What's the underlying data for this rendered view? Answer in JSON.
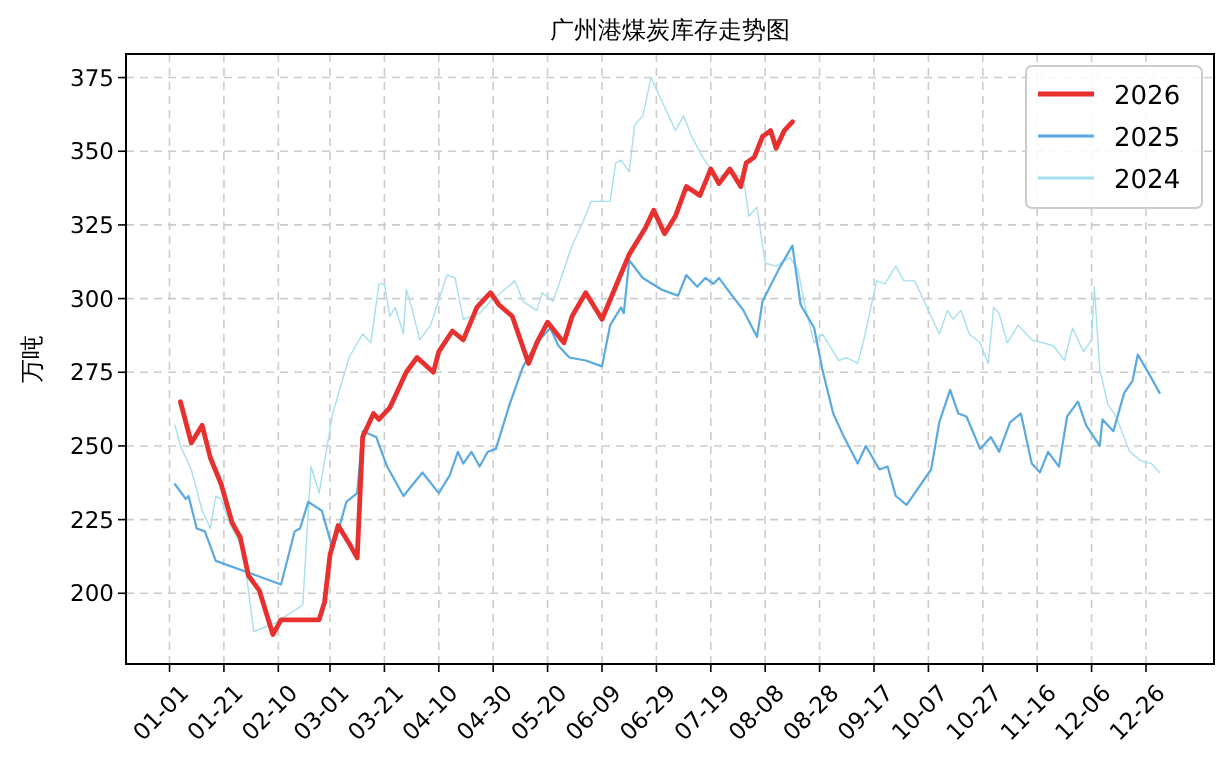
{
  "chart_data": {
    "type": "line",
    "title": "广州港煤炭库存走势图",
    "ylabel": "万吨",
    "xlim": [
      "2000-12-16",
      "2002-01-20"
    ],
    "ylim": [
      176,
      383
    ],
    "xticks": [
      {
        "value": "--01-01",
        "label": "01-01"
      },
      {
        "value": "--01-21",
        "label": "01-21"
      },
      {
        "value": "--02-10",
        "label": "02-10"
      },
      {
        "value": "--03-01",
        "label": "03-01"
      },
      {
        "value": "--03-21",
        "label": "03-21"
      },
      {
        "value": "--04-10",
        "label": "04-10"
      },
      {
        "value": "--04-30",
        "label": "04-30"
      },
      {
        "value": "--05-20",
        "label": "05-20"
      },
      {
        "value": "--06-09",
        "label": "06-09"
      },
      {
        "value": "--06-29",
        "label": "06-29"
      },
      {
        "value": "--07-19",
        "label": "07-19"
      },
      {
        "value": "--08-08",
        "label": "08-08"
      },
      {
        "value": "--08-28",
        "label": "08-28"
      },
      {
        "value": "--09-17",
        "label": "09-17"
      },
      {
        "value": "--10-07",
        "label": "10-07"
      },
      {
        "value": "--10-27",
        "label": "10-27"
      },
      {
        "value": "--11-16",
        "label": "11-16"
      },
      {
        "value": "--12-06",
        "label": "12-06"
      },
      {
        "value": "--12-26",
        "label": "12-26"
      }
    ],
    "yticks": [
      200,
      225,
      250,
      275,
      300,
      325,
      350,
      375
    ],
    "grid": true,
    "legend": "top right",
    "line_style": "solid",
    "marker": "none",
    "series": [
      {
        "name": "2026",
        "color": "#e8302f",
        "x": [
          "--01-05",
          "--01-09",
          "--01-13",
          "--01-16",
          "--01-20",
          "--01-24",
          "--01-27",
          "--01-30",
          "--02-03",
          "--02-05",
          "--02-08",
          "--02-11",
          "--02-25",
          "--02-27",
          "--03-01",
          "--03-04",
          "--03-08",
          "--03-11",
          "--03-13",
          "--03-17",
          "--03-19",
          "--03-23",
          "--03-26",
          "--03-29",
          "--04-02",
          "--04-08",
          "--04-10",
          "--04-15",
          "--04-19",
          "--04-24",
          "--04-29",
          "--05-02",
          "--05-07",
          "--05-13",
          "--05-16",
          "--05-20",
          "--05-26",
          "--05-29",
          "--06-03",
          "--06-09",
          "--06-14",
          "--06-19",
          "--06-25",
          "--06-28",
          "--07-02",
          "--07-06",
          "--07-10",
          "--07-15",
          "--07-19",
          "--07-22",
          "--07-26",
          "--07-30",
          "--08-01",
          "--08-04",
          "--08-07",
          "--08-10",
          "--08-12",
          "--08-15",
          "--08-18"
        ],
        "values": [
          265,
          251,
          257,
          246,
          237,
          224,
          219,
          206,
          201,
          195,
          186,
          191,
          191,
          197,
          213,
          223,
          217,
          212,
          253,
          261,
          259,
          263,
          269,
          275,
          280,
          275,
          282,
          289,
          286,
          297,
          302,
          298,
          294,
          278,
          285,
          292,
          285,
          294,
          302,
          293,
          304,
          315,
          324,
          330,
          322,
          328,
          338,
          335,
          344,
          339,
          344,
          338,
          346,
          348,
          355,
          357,
          351,
          357,
          360
        ]
      },
      {
        "name": "2025",
        "color": "#5aa9e0",
        "x": [
          "--01-03",
          "--01-07",
          "--01-08",
          "--01-11",
          "--01-14",
          "--01-18",
          "--02-11",
          "--02-16",
          "--02-18",
          "--02-21",
          "--02-26",
          "--03-02",
          "--03-04",
          "--03-07",
          "--03-11",
          "--03-13",
          "--03-18",
          "--03-22",
          "--03-28",
          "--04-04",
          "--04-10",
          "--04-14",
          "--04-17",
          "--04-19",
          "--04-22",
          "--04-25",
          "--04-28",
          "--05-01",
          "--05-06",
          "--05-11",
          "--05-16",
          "--05-21",
          "--05-24",
          "--05-28",
          "--06-03",
          "--06-09",
          "--06-12",
          "--06-16",
          "--06-17",
          "--06-19",
          "--06-24",
          "--07-01",
          "--07-07",
          "--07-10",
          "--07-14",
          "--07-17",
          "--07-20",
          "--07-22",
          "--07-26",
          "--07-31",
          "--08-05",
          "--08-07",
          "--08-13",
          "--08-18",
          "--08-21",
          "--08-26",
          "--08-29",
          "--09-02",
          "--09-06",
          "--09-11",
          "--09-14",
          "--09-19",
          "--09-22",
          "--09-25",
          "--09-29",
          "--10-08",
          "--10-11",
          "--10-15",
          "--10-18",
          "--10-21",
          "--10-26",
          "--10-30",
          "--11-02",
          "--11-06",
          "--11-10",
          "--11-14",
          "--11-17",
          "--11-20",
          "--11-24",
          "--11-27",
          "--12-01",
          "--12-04",
          "--12-09",
          "--12-10",
          "--12-14",
          "--12-18",
          "--12-21",
          "--12-23",
          "--12-28",
          "--12-31"
        ],
        "values": [
          237,
          232,
          233,
          222,
          221,
          211,
          203,
          221,
          222,
          231,
          228,
          215,
          221,
          231,
          234,
          255,
          253,
          243,
          233,
          241,
          234,
          240,
          248,
          244,
          248,
          243,
          248,
          249,
          264,
          277,
          285,
          290,
          284,
          280,
          279,
          277,
          291,
          297,
          295,
          313,
          307,
          303,
          301,
          308,
          304,
          307,
          305,
          307,
          302,
          296,
          287,
          299,
          310,
          318,
          298,
          290,
          276,
          261,
          253,
          244,
          250,
          242,
          243,
          233,
          230,
          242,
          258,
          269,
          261,
          260,
          249,
          253,
          248,
          258,
          261,
          244,
          241,
          248,
          243,
          260,
          265,
          257,
          250,
          259,
          255,
          268,
          272,
          281,
          273,
          268
        ]
      },
      {
        "name": "2024",
        "color": "#a6e0ee",
        "x": [
          "--01-03",
          "--01-05",
          "--01-09",
          "--01-13",
          "--01-16",
          "--01-18",
          "--01-20",
          "--01-23",
          "--01-28",
          "--02-01",
          "--02-09",
          "--02-19",
          "--02-22",
          "--02-25",
          "--03-02",
          "--03-08",
          "--03-13",
          "--03-16",
          "--03-19",
          "--03-21",
          "--03-23",
          "--03-25",
          "--03-28",
          "--03-29",
          "--03-31",
          "--04-03",
          "--04-07",
          "--04-13",
          "--04-16",
          "--04-19",
          "--04-25",
          "--04-29",
          "--05-08",
          "--05-11",
          "--05-16",
          "--05-18",
          "--05-22",
          "--05-29",
          "--06-02",
          "--06-05",
          "--06-09",
          "--06-12",
          "--06-14",
          "--06-16",
          "--06-19",
          "--06-21",
          "--06-24",
          "--06-27",
          "--06-30",
          "--07-04",
          "--07-06",
          "--07-09",
          "--07-12",
          "--07-16",
          "--07-21",
          "--07-26",
          "--07-31",
          "--08-02",
          "--08-05",
          "--08-08",
          "--08-12",
          "--08-17",
          "--08-20",
          "--08-23",
          "--08-26",
          "--08-29",
          "--09-04",
          "--09-07",
          "--09-11",
          "--09-13",
          "--09-18",
          "--09-21",
          "--09-25",
          "--09-28",
          "--10-02",
          "--10-06",
          "--10-11",
          "--10-14",
          "--10-16",
          "--10-19",
          "--10-22",
          "--10-26",
          "--10-29",
          "--10-31",
          "--11-02",
          "--11-05",
          "--11-09",
          "--11-14",
          "--11-18",
          "--11-22",
          "--11-26",
          "--11-29",
          "--12-03",
          "--12-06",
          "--12-07",
          "--12-09",
          "--12-12",
          "--12-15",
          "--12-20",
          "--12-24",
          "--12-28",
          "--12-31"
        ],
        "values": [
          257,
          250,
          242,
          228,
          222,
          233,
          232,
          224,
          215,
          187,
          190,
          196,
          243,
          234,
          261,
          280,
          288,
          285,
          305,
          305,
          294,
          297,
          288,
          303,
          297,
          286,
          291,
          308,
          307,
          293,
          295,
          299,
          306,
          299,
          296,
          302,
          299,
          318,
          326,
          333,
          333,
          333,
          346,
          347,
          343,
          359,
          362,
          375,
          369,
          361,
          357,
          362,
          355,
          348,
          341,
          343,
          341,
          328,
          331,
          312,
          311,
          314,
          310,
          296,
          285,
          288,
          279,
          280,
          278,
          285,
          306,
          305,
          311,
          306,
          306,
          298,
          288,
          296,
          293,
          296,
          288,
          285,
          278,
          297,
          295,
          285,
          291,
          286,
          285,
          284,
          279,
          290,
          282,
          286,
          304,
          276,
          264,
          260,
          248,
          245,
          244,
          241
        ]
      }
    ]
  }
}
